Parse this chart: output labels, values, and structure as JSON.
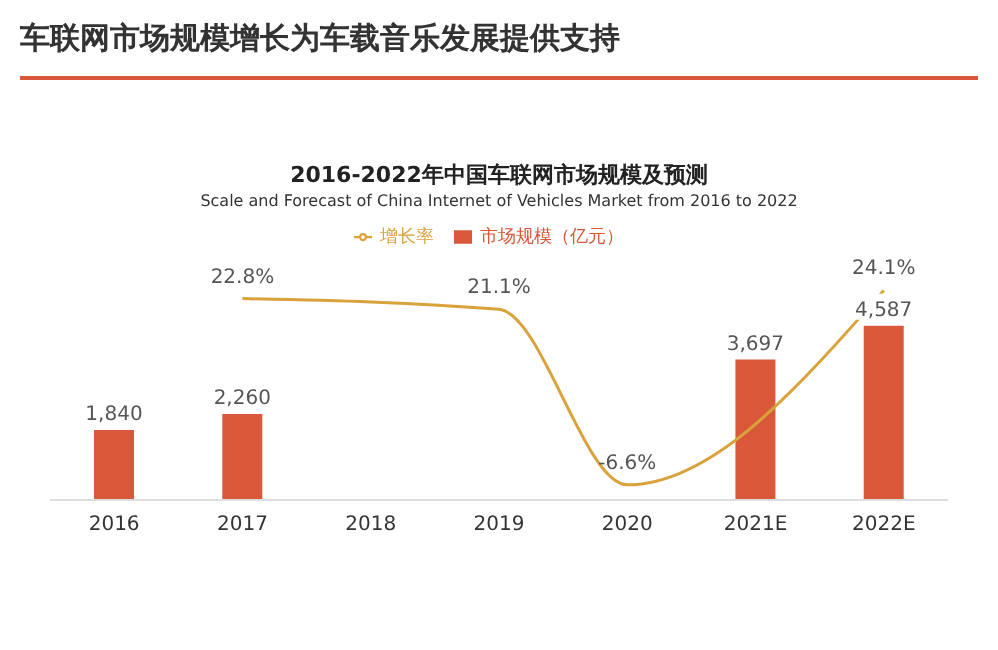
{
  "chart_data": {
    "type": "bar",
    "title": "2016-2022年中国车联网市场规模及预测",
    "subtitle": "Scale and Forecast of China Internet of Vehicles Market from 2016 to 2022",
    "annotations": [
      "车联网市场规模增长为车载音乐发展提供支持"
    ],
    "categories": [
      "2016",
      "2017",
      "2018",
      "2019",
      "2020",
      "2021E",
      "2022E"
    ],
    "series": [
      {
        "name": "市场规模（亿元）",
        "color": "#d9583a",
        "values": [
          1840,
          2260,
          null,
          null,
          null,
          3697,
          4587
        ],
        "value_labels": [
          "1,840",
          "2,260",
          null,
          null,
          null,
          "3,697",
          "4,587"
        ]
      },
      {
        "name": "增长率",
        "type": "line",
        "axis": "y2",
        "color": "#d9a23a",
        "values": [
          null,
          22.8,
          null,
          21.1,
          -6.6,
          null,
          24.1
        ],
        "value_labels": [
          null,
          "22.8%",
          null,
          "21.1%",
          "-6.6%",
          null,
          "24.1%"
        ]
      }
    ],
    "legend": "top",
    "marker": "none",
    "grid": false
  }
}
